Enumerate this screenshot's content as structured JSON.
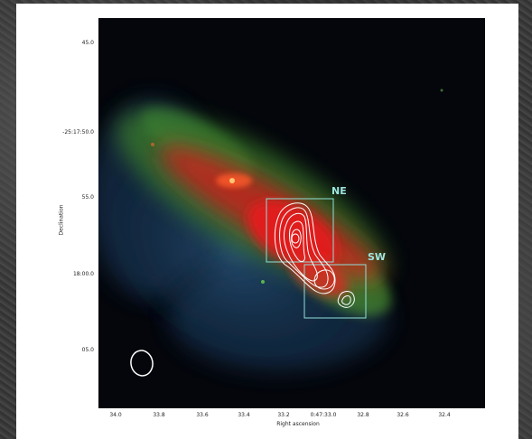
{
  "axes": {
    "ylabel": "Declination",
    "xlabel": "Right ascension",
    "yticks": [
      "45.0",
      "-25:17:50.0",
      "55.0",
      "18:00.0",
      "05.0"
    ],
    "xticks": [
      "34.0",
      "33.8",
      "33.6",
      "33.4",
      "33.2",
      "0:47:33.0",
      "32.8",
      "32.6",
      "32.4"
    ]
  },
  "regions": [
    {
      "label": "NE"
    },
    {
      "label": "SW"
    }
  ],
  "colors": {
    "box": "#8fe0d8",
    "contour": "#ffffff",
    "label": "#9fe6e0"
  }
}
